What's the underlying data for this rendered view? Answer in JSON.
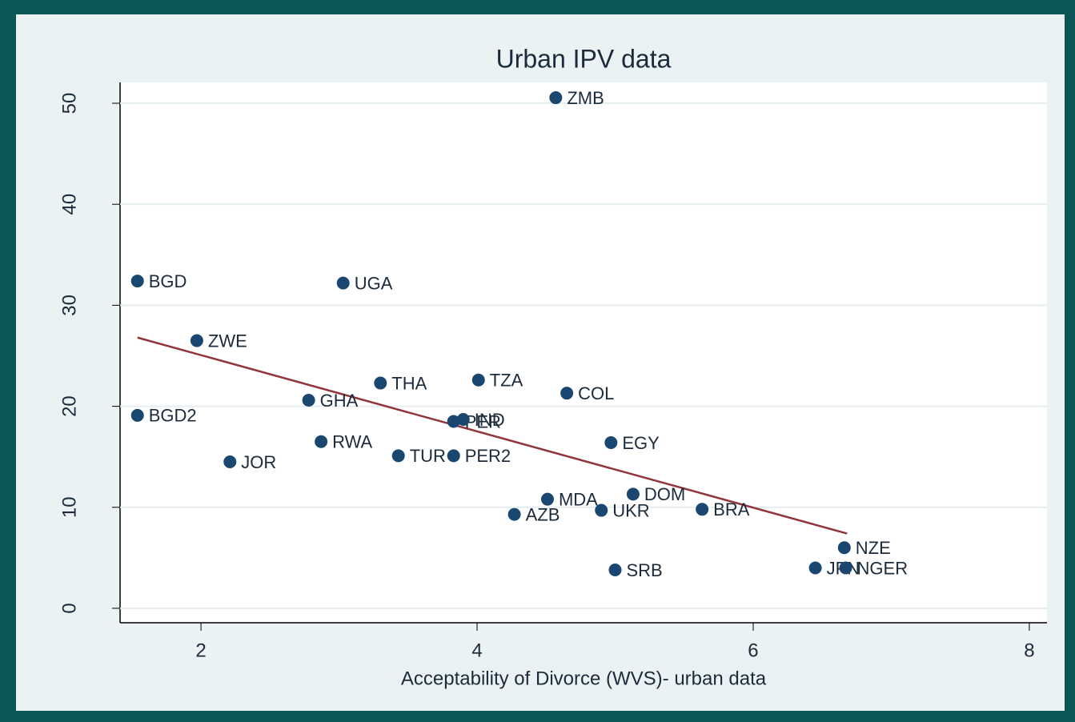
{
  "chart_data": {
    "type": "scatter",
    "title": "Urban IPV data",
    "x_label": "Acceptability of Divorce (WVS)- urban data",
    "labels": [
      "ZMB",
      "BGD",
      "UGA",
      "ZWE",
      "THA",
      "TZA",
      "COL",
      "GHA",
      "BGD2",
      "PER",
      "IND",
      "EGY",
      "RWA",
      "JOR",
      "TUR",
      "PER2",
      "MDA",
      "DOM",
      "AZB",
      "UKR",
      "BRA",
      "NZE",
      "SRB",
      "JPN",
      "NGER"
    ],
    "x": [
      4.57,
      1.54,
      3.03,
      1.97,
      3.3,
      4.01,
      4.65,
      2.78,
      1.54,
      3.83,
      3.9,
      4.97,
      2.87,
      2.21,
      3.43,
      3.83,
      4.51,
      5.13,
      4.27,
      4.9,
      5.63,
      6.66,
      5.0,
      6.45,
      6.67
    ],
    "values": [
      50.55,
      32.4,
      32.2,
      26.5,
      22.3,
      22.6,
      21.3,
      20.6,
      19.1,
      18.5,
      18.7,
      16.4,
      16.5,
      14.5,
      15.1,
      15.1,
      10.8,
      11.3,
      9.3,
      9.7,
      9.8,
      6.0,
      3.8,
      4.0,
      4.0
    ],
    "color": "#1a476f",
    "fit_x": [
      1.54,
      6.68
    ],
    "fit_y": [
      26.8,
      7.4
    ],
    "fit_color": "#90353b",
    "xlim": [
      1.414,
      8.128
    ],
    "ylim": [
      -1.43,
      52.06
    ],
    "xticks": [
      2,
      4,
      6,
      8
    ],
    "yticks": [
      0,
      10,
      20,
      30,
      40,
      50
    ],
    "grid": true
  }
}
